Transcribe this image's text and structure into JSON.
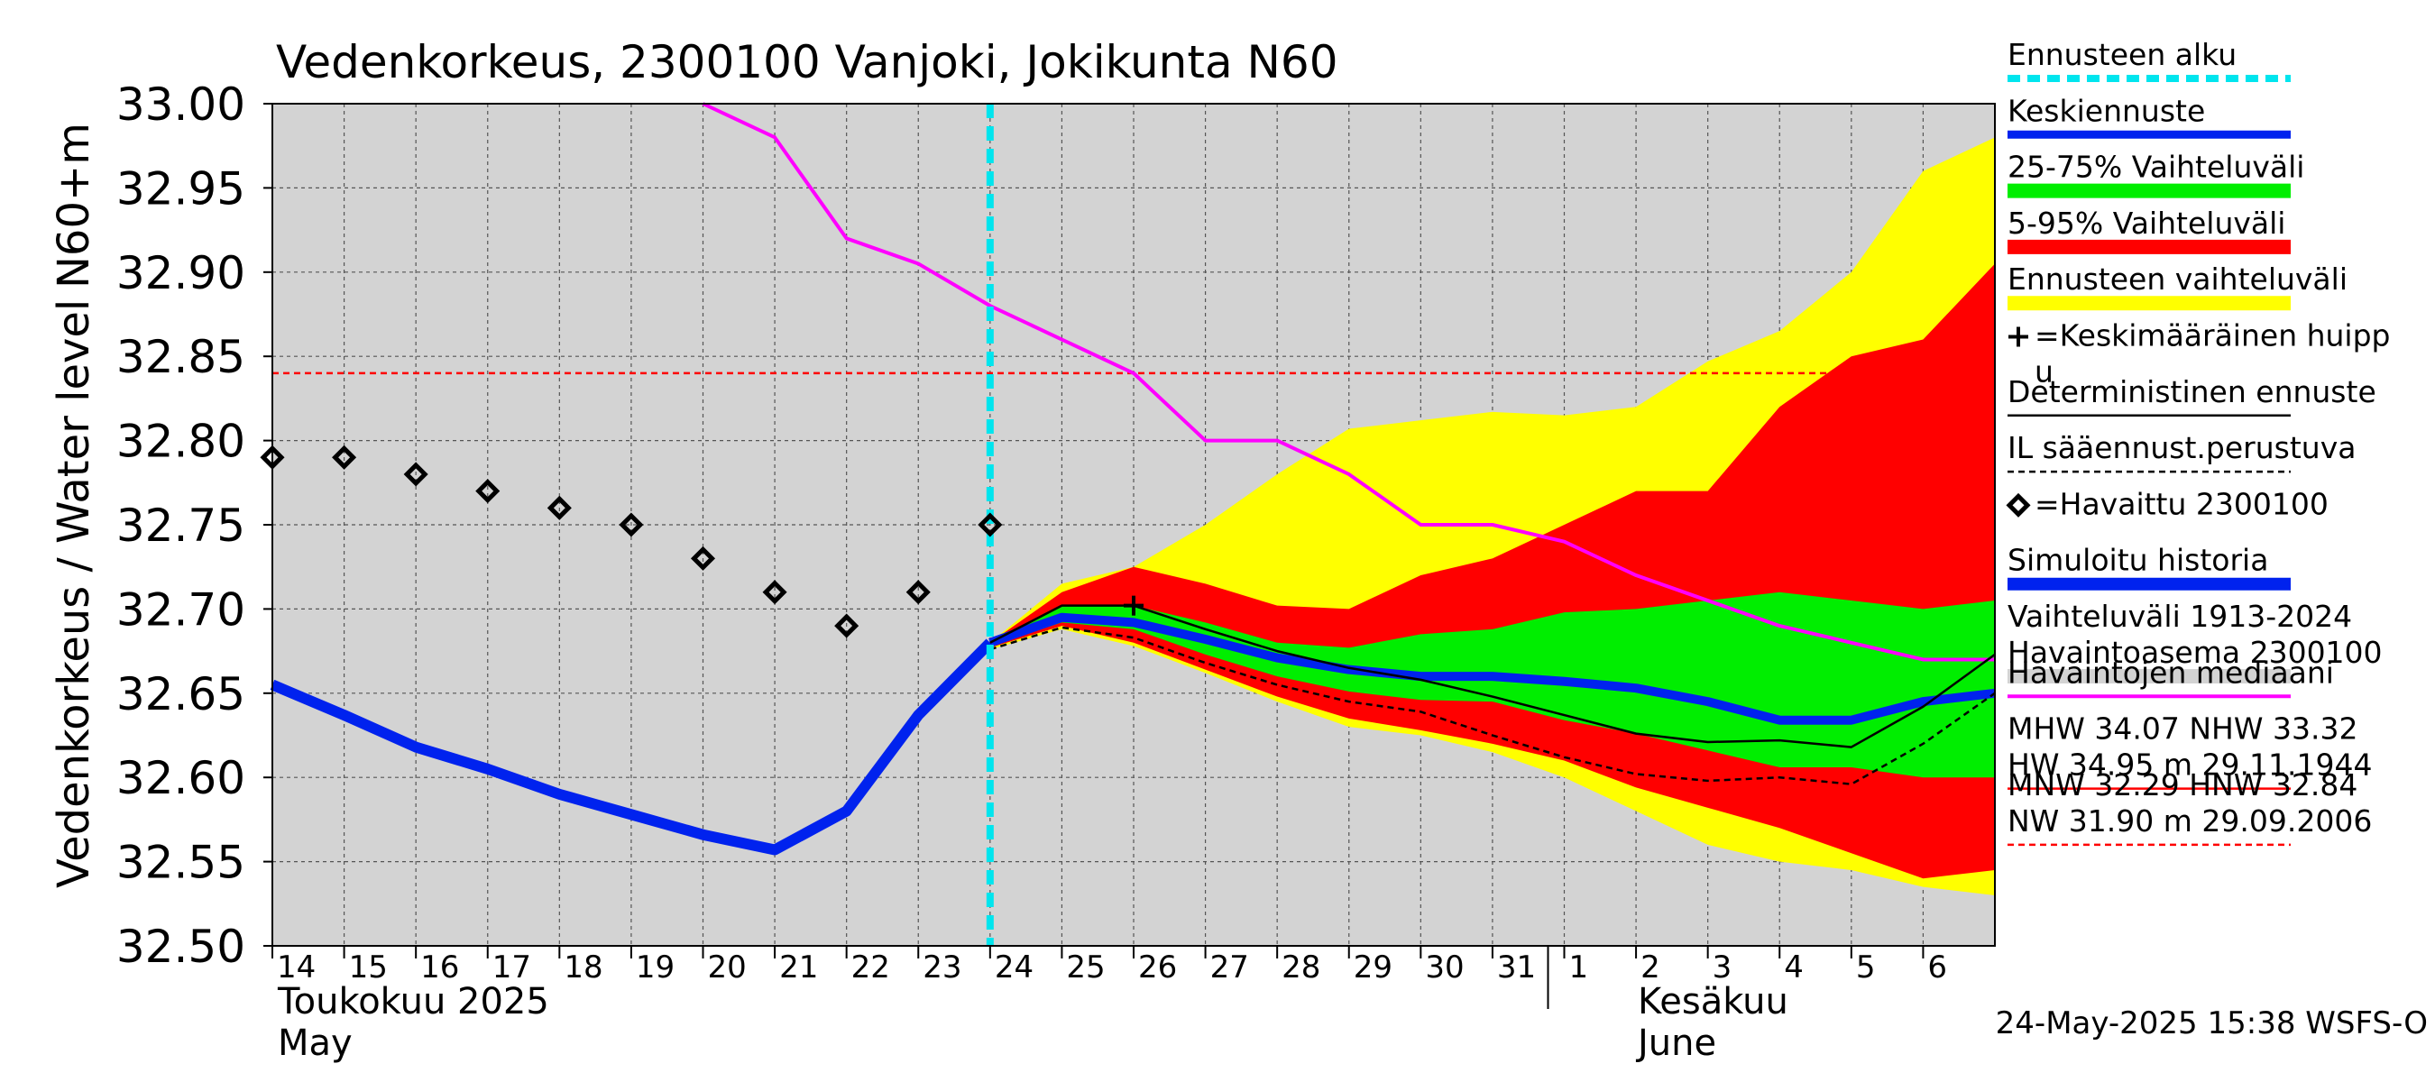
{
  "title": "Vedenkorkeus, 2300100 Vanjoki, Jokikunta N60",
  "ylabel_top": "N60+m",
  "ylabel_main": "Vedenkorkeus / Water level",
  "timestamp": "24-May-2025 15:38 WSFS-O",
  "month_labels": [
    {
      "fi": "Toukokuu  2025",
      "en": "May"
    },
    {
      "fi": "Kesäkuu",
      "en": "June"
    }
  ],
  "legend": [
    {
      "label": "Ennusteen alku",
      "style": "cyan-dashed"
    },
    {
      "label": "Keskiennuste",
      "style": "blue"
    },
    {
      "label": "25-75% Vaihteluväli",
      "style": "green"
    },
    {
      "label": "5-95% Vaihteluväli",
      "style": "red"
    },
    {
      "label": "Ennusteen vaihteluväli",
      "style": "yellow"
    },
    {
      "label": "=Keskimääräinen huipp",
      "label2": "u",
      "style": "plus"
    },
    {
      "label": "Deterministinen ennuste",
      "style": "black"
    },
    {
      "label": "IL sääennust.perustuva",
      "style": "black-dashed"
    },
    {
      "label": "=Havaittu 2300100",
      "style": "diamond"
    },
    {
      "label": "Simuloitu historia",
      "style": "blue-thick"
    },
    {
      "label": "Vaihteluväli 1913-2024",
      "label2": " Havaintoasema 2300100",
      "style": "gray"
    },
    {
      "label": "Havaintojen mediaani",
      "style": "magenta"
    },
    {
      "label": "MHW  34.07 NHW  33.32",
      "label2": "HW  34.95 m 29.11.1944",
      "style": "red-solid"
    },
    {
      "label": "MNW  32.29 HNW  32.84",
      "label2": "NW  31.90 m 29.09.2006",
      "style": "red-dashed"
    }
  ],
  "colors": {
    "background_band": "#d3d3d3",
    "yellow": "#ffff00",
    "red": "#ff0000",
    "green": "#00ee00",
    "blue": "#0022ee",
    "magenta": "#ff00ff",
    "cyan": "#00e5ee",
    "threshold": "#ff0000"
  },
  "chart_data": {
    "type": "line",
    "x_unit": "day",
    "x_range": [
      14,
      38
    ],
    "ylim": [
      32.5,
      33.0
    ],
    "yticks": [
      "32.50",
      "32.55",
      "32.60",
      "32.65",
      "32.70",
      "32.75",
      "32.80",
      "32.85",
      "32.90",
      "32.95",
      "33.00"
    ],
    "xtick_labels": [
      "14",
      "15",
      "16",
      "17",
      "18",
      "19",
      "20",
      "21",
      "22",
      "23",
      "24",
      "25",
      "26",
      "27",
      "28",
      "29",
      "30",
      "31",
      "1",
      "2",
      "3",
      "4",
      "5",
      "6"
    ],
    "forecast_start_day": 24,
    "threshold_hnw": 32.84,
    "observed": [
      [
        14,
        32.79
      ],
      [
        15,
        32.79
      ],
      [
        16,
        32.78
      ],
      [
        17,
        32.77
      ],
      [
        18,
        32.76
      ],
      [
        19,
        32.75
      ],
      [
        20,
        32.73
      ],
      [
        21,
        32.71
      ],
      [
        22,
        32.69
      ],
      [
        23,
        32.71
      ],
      [
        24,
        32.75
      ]
    ],
    "simulated_history": [
      [
        14,
        32.655
      ],
      [
        15,
        32.637
      ],
      [
        16,
        32.618
      ],
      [
        17,
        32.605
      ],
      [
        18,
        32.59
      ],
      [
        19,
        32.578
      ],
      [
        20,
        32.566
      ],
      [
        21,
        32.557
      ],
      [
        22,
        32.58
      ],
      [
        23,
        32.637
      ],
      [
        24,
        32.68
      ]
    ],
    "median": [
      [
        20,
        33.0
      ],
      [
        21,
        32.98
      ],
      [
        22,
        32.92
      ],
      [
        23,
        32.905
      ],
      [
        24,
        32.88
      ],
      [
        25,
        32.86
      ],
      [
        26,
        32.84
      ],
      [
        27,
        32.8
      ],
      [
        28,
        32.8
      ],
      [
        29,
        32.78
      ],
      [
        30,
        32.75
      ],
      [
        31,
        32.75
      ],
      [
        32,
        32.74
      ],
      [
        33,
        32.72
      ],
      [
        34,
        32.705
      ],
      [
        35,
        32.69
      ],
      [
        36,
        32.68
      ],
      [
        37,
        32.67
      ],
      [
        38,
        32.67
      ]
    ],
    "mean_forecast": [
      [
        24,
        32.68
      ],
      [
        25,
        32.695
      ],
      [
        26,
        32.692
      ],
      [
        27,
        32.682
      ],
      [
        28,
        32.671
      ],
      [
        29,
        32.664
      ],
      [
        30,
        32.66
      ],
      [
        31,
        32.66
      ],
      [
        32,
        32.657
      ],
      [
        33,
        32.653
      ],
      [
        34,
        32.645
      ],
      [
        35,
        32.634
      ],
      [
        36,
        32.634
      ],
      [
        37,
        32.645
      ],
      [
        38,
        32.65
      ]
    ],
    "deterministic": [
      [
        24,
        32.68
      ],
      [
        25,
        32.702
      ],
      [
        26,
        32.702
      ],
      [
        27,
        32.688
      ],
      [
        28,
        32.675
      ],
      [
        29,
        32.665
      ],
      [
        30,
        32.658
      ],
      [
        31,
        32.648
      ],
      [
        32,
        32.637
      ],
      [
        33,
        32.626
      ],
      [
        34,
        32.621
      ],
      [
        35,
        32.622
      ],
      [
        36,
        32.618
      ],
      [
        37,
        32.642
      ],
      [
        38,
        32.673
      ]
    ],
    "il_forecast": [
      [
        24,
        32.676
      ],
      [
        25,
        32.689
      ],
      [
        26,
        32.683
      ],
      [
        27,
        32.668
      ],
      [
        28,
        32.655
      ],
      [
        29,
        32.645
      ],
      [
        30,
        32.639
      ],
      [
        31,
        32.625
      ],
      [
        32,
        32.612
      ],
      [
        33,
        32.602
      ],
      [
        34,
        32.598
      ],
      [
        35,
        32.6
      ],
      [
        36,
        32.596
      ],
      [
        37,
        32.62
      ],
      [
        38,
        32.65
      ]
    ],
    "mean_peak": {
      "x": 26,
      "y": 32.702
    },
    "band_yellow": {
      "upper": [
        [
          24,
          32.68
        ],
        [
          25,
          32.715
        ],
        [
          26,
          32.725
        ],
        [
          27,
          32.75
        ],
        [
          28,
          32.78
        ],
        [
          29,
          32.807
        ],
        [
          30,
          32.812
        ],
        [
          31,
          32.817
        ],
        [
          32,
          32.815
        ],
        [
          33,
          32.82
        ],
        [
          34,
          32.847
        ],
        [
          35,
          32.865
        ],
        [
          36,
          32.9
        ],
        [
          37,
          32.96
        ],
        [
          38,
          32.98
        ]
      ],
      "lower": [
        [
          24,
          32.676
        ],
        [
          25,
          32.688
        ],
        [
          26,
          32.678
        ],
        [
          27,
          32.662
        ],
        [
          28,
          32.645
        ],
        [
          29,
          32.63
        ],
        [
          30,
          32.625
        ],
        [
          31,
          32.615
        ],
        [
          32,
          32.6
        ],
        [
          33,
          32.58
        ],
        [
          34,
          32.56
        ],
        [
          35,
          32.55
        ],
        [
          36,
          32.545
        ],
        [
          37,
          32.535
        ],
        [
          38,
          32.53
        ]
      ]
    },
    "band_red": {
      "upper": [
        [
          24,
          32.68
        ],
        [
          25,
          32.71
        ],
        [
          26,
          32.725
        ],
        [
          27,
          32.715
        ],
        [
          28,
          32.702
        ],
        [
          29,
          32.7
        ],
        [
          30,
          32.72
        ],
        [
          31,
          32.73
        ],
        [
          32,
          32.75
        ],
        [
          33,
          32.77
        ],
        [
          34,
          32.77
        ],
        [
          35,
          32.82
        ],
        [
          36,
          32.85
        ],
        [
          37,
          32.86
        ],
        [
          38,
          32.905
        ]
      ],
      "lower": [
        [
          24,
          32.677
        ],
        [
          25,
          32.69
        ],
        [
          26,
          32.68
        ],
        [
          27,
          32.664
        ],
        [
          28,
          32.648
        ],
        [
          29,
          32.635
        ],
        [
          30,
          32.628
        ],
        [
          31,
          32.62
        ],
        [
          32,
          32.61
        ],
        [
          33,
          32.594
        ],
        [
          34,
          32.582
        ],
        [
          35,
          32.57
        ],
        [
          36,
          32.555
        ],
        [
          37,
          32.54
        ],
        [
          38,
          32.545
        ]
      ]
    },
    "band_green": {
      "upper": [
        [
          24,
          32.68
        ],
        [
          25,
          32.702
        ],
        [
          26,
          32.702
        ],
        [
          27,
          32.692
        ],
        [
          28,
          32.68
        ],
        [
          29,
          32.677
        ],
        [
          30,
          32.685
        ],
        [
          31,
          32.688
        ],
        [
          32,
          32.698
        ],
        [
          33,
          32.7
        ],
        [
          34,
          32.705
        ],
        [
          35,
          32.71
        ],
        [
          36,
          32.705
        ],
        [
          37,
          32.7
        ],
        [
          38,
          32.705
        ]
      ],
      "lower": [
        [
          24,
          32.678
        ],
        [
          25,
          32.692
        ],
        [
          26,
          32.688
        ],
        [
          27,
          32.673
        ],
        [
          28,
          32.66
        ],
        [
          29,
          32.651
        ],
        [
          30,
          32.646
        ],
        [
          31,
          32.645
        ],
        [
          32,
          32.634
        ],
        [
          33,
          32.626
        ],
        [
          34,
          32.616
        ],
        [
          35,
          32.606
        ],
        [
          36,
          32.606
        ],
        [
          37,
          32.6
        ],
        [
          38,
          32.6
        ]
      ]
    }
  }
}
